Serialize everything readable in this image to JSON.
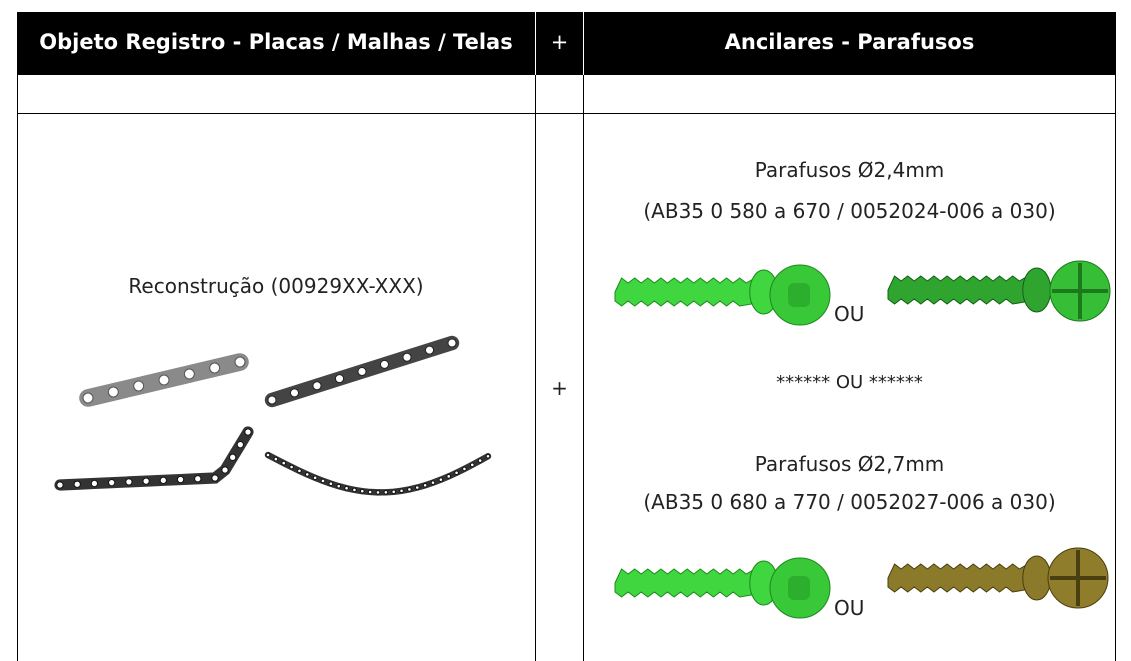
{
  "header": {
    "col1": "Objeto Registro - Placas / Malhas / Telas",
    "col2": "+",
    "col3": "Ancilares - Parafusos"
  },
  "row": {
    "left": "Reconstrução (00929XX-XXX)",
    "middle": "+",
    "right": {
      "screw1_title": "Parafusos Ø2,4mm",
      "screw1_codes": "(AB35 0 580 a 670 / 0052024-006 a 030)",
      "or1": "OU",
      "separator": "****** OU ******",
      "screw2_title": "Parafusos Ø2,7mm",
      "screw2_codes": "(AB35 0 680 a 770 / 0052027-006 a 030)",
      "or2": "OU"
    }
  }
}
